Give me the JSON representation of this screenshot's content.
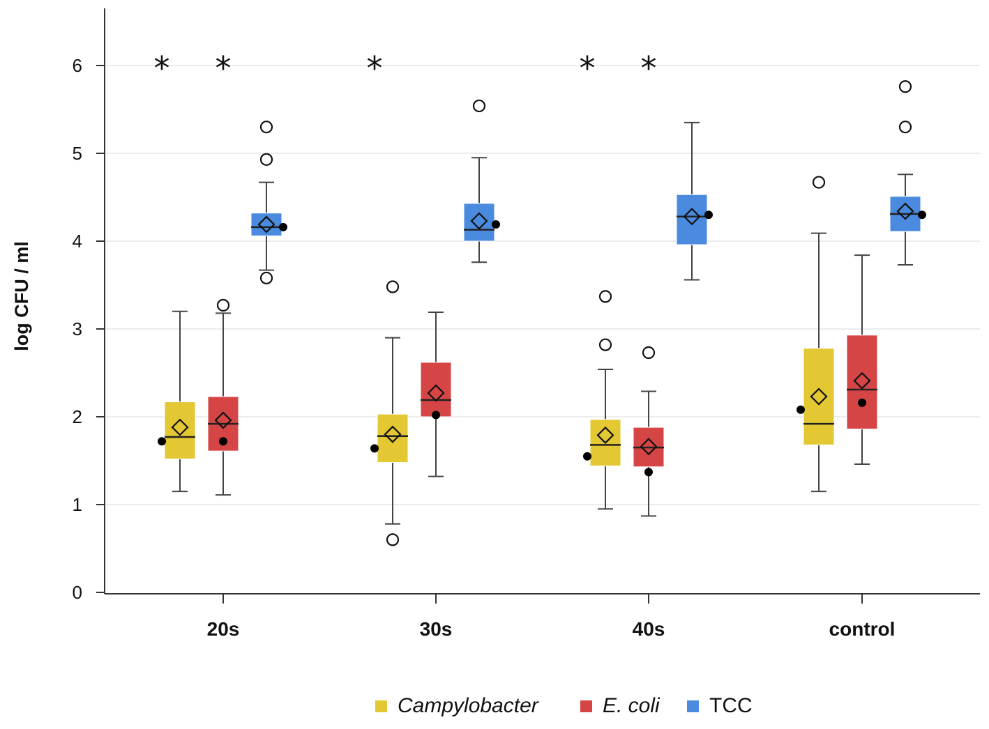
{
  "chart_data": {
    "type": "boxplot",
    "title": "",
    "xlabel": "",
    "ylabel": "log CFU / ml",
    "ylim": [
      0,
      6.6
    ],
    "yticks": [
      0,
      1,
      2,
      3,
      4,
      5,
      6
    ],
    "categories": [
      "20s",
      "30s",
      "40s",
      "control"
    ],
    "significance_marker": "*",
    "series": [
      {
        "name": "Campylobacter",
        "italic": true,
        "color": "#E3C733",
        "boxes": [
          {
            "category": "20s",
            "q1": 1.52,
            "median": 1.77,
            "q3": 2.17,
            "whisker_low": 1.15,
            "whisker_high": 3.2,
            "mean": 1.88,
            "dot": 1.72,
            "outliers": [],
            "significant": true
          },
          {
            "category": "30s",
            "q1": 1.48,
            "median": 1.78,
            "q3": 2.03,
            "whisker_low": 0.78,
            "whisker_high": 2.9,
            "mean": 1.8,
            "dot": 1.64,
            "outliers": [
              3.48,
              0.6
            ],
            "significant": true
          },
          {
            "category": "40s",
            "q1": 1.44,
            "median": 1.68,
            "q3": 1.97,
            "whisker_low": 0.95,
            "whisker_high": 2.54,
            "mean": 1.79,
            "dot": 1.55,
            "outliers": [
              3.37,
              2.82
            ],
            "significant": true
          },
          {
            "category": "control",
            "q1": 1.68,
            "median": 1.92,
            "q3": 2.78,
            "whisker_low": 1.15,
            "whisker_high": 4.09,
            "mean": 2.23,
            "dot": 2.08,
            "outliers": [
              4.67
            ],
            "significant": false
          }
        ]
      },
      {
        "name": "E. coli",
        "italic": true,
        "color": "#D64545",
        "boxes": [
          {
            "category": "20s",
            "q1": 1.61,
            "median": 1.92,
            "q3": 2.23,
            "whisker_low": 1.11,
            "whisker_high": 3.18,
            "mean": 1.96,
            "dot": 1.72,
            "outliers": [
              3.27
            ],
            "significant": true
          },
          {
            "category": "30s",
            "q1": 2.0,
            "median": 2.19,
            "q3": 2.62,
            "whisker_low": 1.32,
            "whisker_high": 3.19,
            "mean": 2.27,
            "dot": 2.02,
            "outliers": [],
            "significant": false
          },
          {
            "category": "40s",
            "q1": 1.43,
            "median": 1.65,
            "q3": 1.88,
            "whisker_low": 0.87,
            "whisker_high": 2.29,
            "mean": 1.66,
            "dot": 1.37,
            "outliers": [
              2.73
            ],
            "significant": true
          },
          {
            "category": "control",
            "q1": 1.86,
            "median": 2.31,
            "q3": 2.93,
            "whisker_low": 1.46,
            "whisker_high": 3.84,
            "mean": 2.41,
            "dot": 2.16,
            "outliers": [],
            "significant": false
          }
        ]
      },
      {
        "name": "TCC",
        "italic": false,
        "color": "#4A8BE0",
        "boxes": [
          {
            "category": "20s",
            "q1": 4.06,
            "median": 4.16,
            "q3": 4.32,
            "whisker_low": 3.67,
            "whisker_high": 4.67,
            "mean": 4.19,
            "dot": 4.16,
            "outliers": [
              5.3,
              4.93,
              3.58
            ],
            "significant": false
          },
          {
            "category": "30s",
            "q1": 4.0,
            "median": 4.13,
            "q3": 4.43,
            "whisker_low": 3.76,
            "whisker_high": 4.95,
            "mean": 4.23,
            "dot": 4.19,
            "outliers": [
              5.54
            ],
            "significant": false
          },
          {
            "category": "40s",
            "q1": 3.96,
            "median": 4.28,
            "q3": 4.53,
            "whisker_low": 3.56,
            "whisker_high": 5.35,
            "mean": 4.28,
            "dot": 4.3,
            "outliers": [],
            "significant": false
          },
          {
            "category": "control",
            "q1": 4.11,
            "median": 4.31,
            "q3": 4.51,
            "whisker_low": 3.73,
            "whisker_high": 4.76,
            "mean": 4.34,
            "dot": 4.3,
            "outliers": [
              5.76,
              5.3
            ],
            "significant": false
          }
        ]
      }
    ],
    "legend": {
      "placement": "bottom-center",
      "entries": [
        "Campylobacter",
        "E. coli",
        "TCC"
      ]
    },
    "colors": {
      "axis": "#333333",
      "grid": "#e6e6e6",
      "box_edge": "#ffffff",
      "median_line": "#222222",
      "whisker": "#444444"
    }
  }
}
